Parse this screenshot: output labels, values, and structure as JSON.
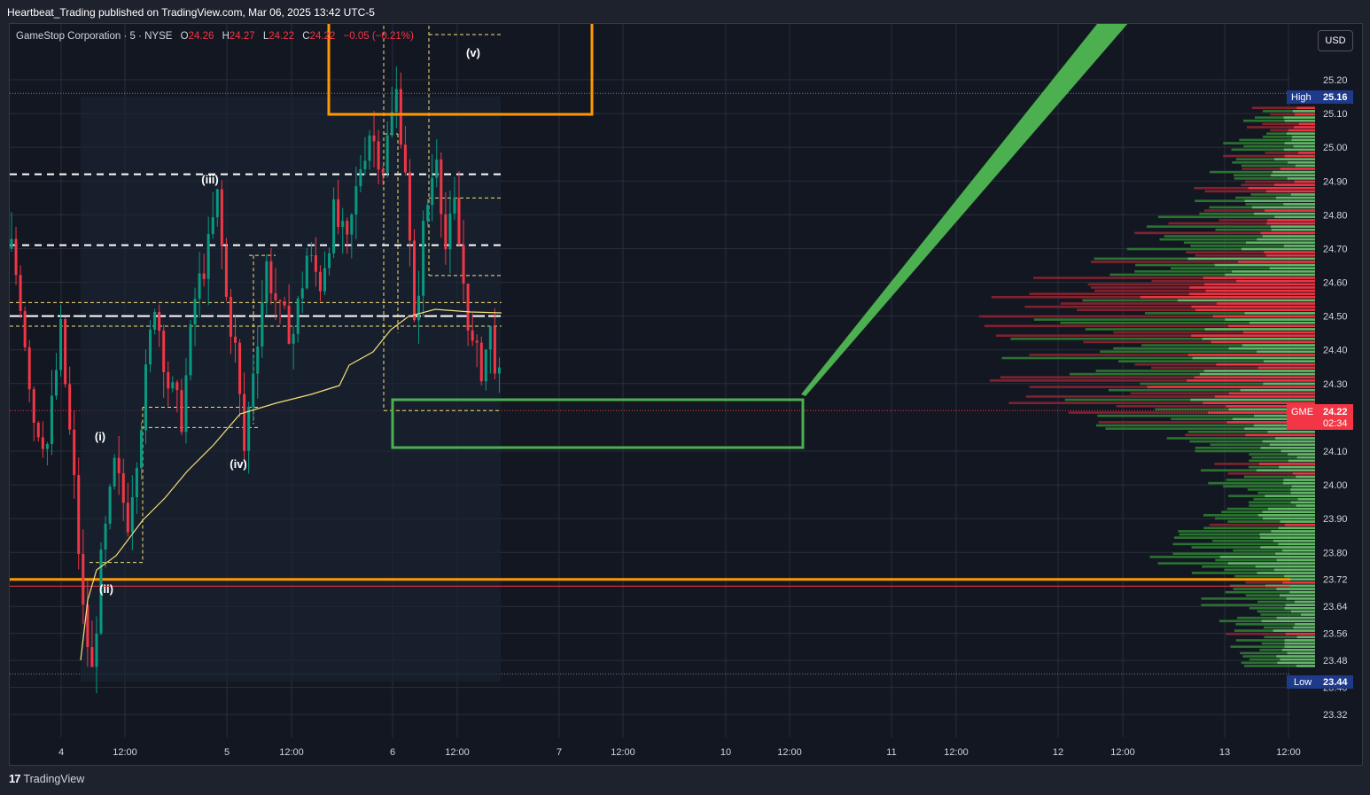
{
  "header": {
    "published_text": "Heartbeat_Trading published on TradingView.com, Mar 06, 2025 13:42 UTC-5"
  },
  "legend": {
    "symbol": "GameStop Corporation · 5 · NYSE",
    "open_label": "O",
    "open": "24.26",
    "high_label": "H",
    "high": "24.27",
    "low_label": "L",
    "low": "24.22",
    "close_label": "C",
    "close": "24.22",
    "change": "−0.05 (−0.21%)"
  },
  "currency_button": "USD",
  "price_axis": {
    "ticks": [
      "25.20",
      "25.10",
      "25.00",
      "24.90",
      "24.80",
      "24.70",
      "24.60",
      "24.50",
      "24.40",
      "24.30",
      "24.10",
      "24.00",
      "23.90",
      "23.80",
      "23.72",
      "23.64",
      "23.56",
      "23.48",
      "23.40",
      "23.32"
    ],
    "high_tag": {
      "label": "High",
      "value": "25.16"
    },
    "low_tag": {
      "label": "Low",
      "value": "23.44"
    },
    "current_tag": {
      "symbol": "GME",
      "value": "24.22",
      "countdown": "02:34"
    }
  },
  "time_axis": {
    "ticks": [
      "4",
      "12:00",
      "5",
      "12:00",
      "6",
      "12:00",
      "7",
      "12:00",
      "10",
      "12:00",
      "11",
      "12:00",
      "12",
      "12:00",
      "13",
      "12:00"
    ]
  },
  "wave_labels": [
    "(i)",
    "(ii)",
    "(iii)",
    "(iv)",
    "(v)"
  ],
  "chart_data": {
    "type": "candlestick",
    "symbol": "GME",
    "exchange": "NYSE",
    "interval": "5",
    "ylim": [
      23.28,
      25.28
    ],
    "series": [
      {
        "name": "price-path",
        "values": [
          [
            0.0,
            24.7
          ],
          [
            2,
            24.55
          ],
          [
            5,
            24.2
          ],
          [
            8,
            24.12
          ],
          [
            11,
            24.45
          ],
          [
            14,
            24.0
          ],
          [
            16,
            23.62
          ],
          [
            18,
            23.44
          ],
          [
            20,
            23.76
          ],
          [
            23,
            24.05
          ],
          [
            26,
            23.9
          ],
          [
            29,
            24.2
          ],
          [
            32,
            24.55
          ],
          [
            35,
            24.3
          ],
          [
            38,
            24.2
          ],
          [
            41,
            24.55
          ],
          [
            44,
            24.7
          ],
          [
            46,
            24.85
          ],
          [
            48,
            24.55
          ],
          [
            50,
            24.4
          ],
          [
            52,
            24.1
          ],
          [
            54,
            24.35
          ],
          [
            57,
            24.65
          ],
          [
            60,
            24.5
          ],
          [
            63,
            24.45
          ],
          [
            66,
            24.68
          ],
          [
            69,
            24.6
          ],
          [
            72,
            24.8
          ],
          [
            75,
            24.7
          ],
          [
            78,
            24.95
          ],
          [
            80,
            25.05
          ],
          [
            83,
            24.95
          ],
          [
            86,
            25.16
          ],
          [
            88,
            24.95
          ],
          [
            90,
            24.45
          ],
          [
            92,
            24.75
          ],
          [
            95,
            25.0
          ],
          [
            97,
            24.7
          ],
          [
            99,
            24.82
          ],
          [
            101,
            24.6
          ],
          [
            103,
            24.4
          ],
          [
            105,
            24.35
          ],
          [
            107,
            24.45
          ],
          [
            109,
            24.3
          ],
          [
            110,
            24.22
          ]
        ]
      }
    ],
    "levels": [
      24.92,
      24.71,
      24.52,
      24.5,
      23.72,
      23.7
    ],
    "session_high": 25.16,
    "session_low": 23.44,
    "last_price": 24.22
  },
  "colors": {
    "up": "#089981",
    "down": "#f23645",
    "vwap": "#f5e07a",
    "orange": "#ff9800",
    "green_box": "#4caf50",
    "background": "#131722"
  }
}
